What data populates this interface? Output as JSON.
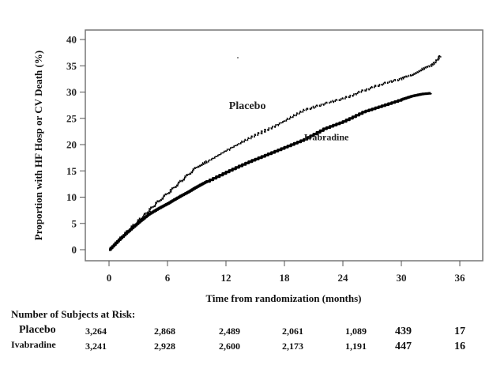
{
  "chart_data": {
    "type": "line",
    "title": "",
    "xlabel": "Time from randomization (months)",
    "ylabel": "Proportion with HF Hosp or CV Death (%)",
    "xlim": [
      -2.5,
      38.5
    ],
    "ylim": [
      -2,
      42
    ],
    "xticks": [
      0,
      6,
      12,
      18,
      24,
      30,
      36
    ],
    "yticks": [
      0,
      5,
      10,
      15,
      20,
      25,
      30,
      35,
      40
    ],
    "grid": false,
    "legend": "inline annotations",
    "series": [
      {
        "name": "Placebo",
        "style": "dotted",
        "x": [
          0,
          1,
          2,
          3,
          4,
          5,
          6,
          7,
          8,
          9,
          10,
          12,
          14,
          16,
          18,
          20,
          22,
          24,
          26,
          28,
          30,
          31,
          32,
          33,
          33.5,
          34
        ],
        "y": [
          0,
          2.0,
          3.8,
          5.6,
          7.4,
          9.2,
          10.8,
          12.5,
          14.2,
          15.8,
          16.8,
          19.0,
          20.9,
          22.8,
          24.6,
          26.6,
          27.8,
          28.8,
          30.3,
          31.6,
          32.6,
          33.3,
          34.3,
          35.0,
          35.8,
          37.0
        ]
      },
      {
        "name": "Ivabradine",
        "style": "solid",
        "x": [
          0,
          1,
          2,
          3,
          4,
          5,
          6,
          7,
          8,
          9,
          10,
          12,
          14,
          16,
          18,
          20,
          22,
          24,
          26,
          28,
          30,
          31,
          32,
          33
        ],
        "y": [
          0,
          1.9,
          3.6,
          5.2,
          6.7,
          7.8,
          8.8,
          9.9,
          10.9,
          12.0,
          13.0,
          14.8,
          16.5,
          18.0,
          19.5,
          21.0,
          23.0,
          24.4,
          26.2,
          27.4,
          28.6,
          29.2,
          29.6,
          29.8
        ]
      }
    ],
    "annotations": [
      {
        "text": "Placebo",
        "x": 14.2,
        "y": 26.8
      },
      {
        "text": "Ivabradine",
        "x": 22.3,
        "y": 20.8
      }
    ]
  },
  "risk_table": {
    "title": "Number of Subjects at Risk:",
    "rows": [
      {
        "label": "Placebo",
        "values": [
          "3,264",
          "2,868",
          "2,489",
          "2,061",
          "1,089",
          "439",
          "17"
        ]
      },
      {
        "label": "Ivabradine",
        "values": [
          "3,241",
          "2,928",
          "2,600",
          "2,173",
          "1,191",
          "447",
          "16"
        ]
      }
    ]
  }
}
